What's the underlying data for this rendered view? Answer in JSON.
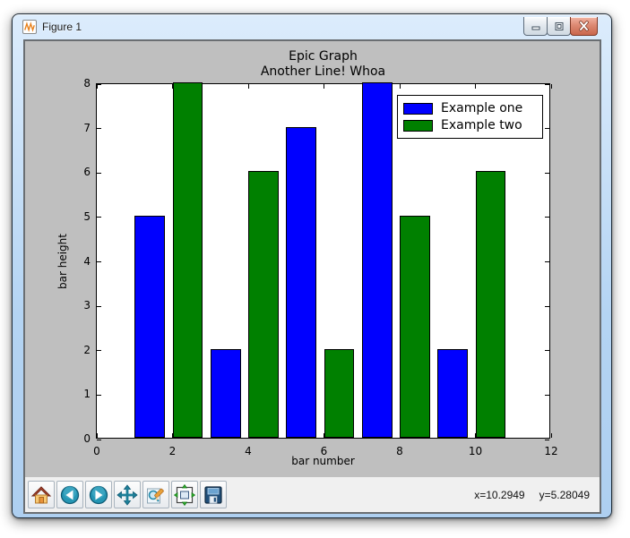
{
  "window": {
    "title": "Figure 1",
    "icon": "matplotlib-logo",
    "controls": [
      "minimize",
      "maximize",
      "close"
    ]
  },
  "chart_data": {
    "type": "bar",
    "title": "Epic Graph",
    "subtitle": "Another Line! Whoa",
    "xlabel": "bar number",
    "ylabel": "bar height",
    "xlim": [
      0,
      12
    ],
    "ylim": [
      0,
      8
    ],
    "xticks": [
      0,
      2,
      4,
      6,
      8,
      10,
      12
    ],
    "yticks": [
      0,
      1,
      2,
      3,
      4,
      5,
      6,
      7,
      8
    ],
    "bar_width": 0.8,
    "grid": false,
    "legend_position": "upper right",
    "series": [
      {
        "name": "Example one",
        "color": "#0000ff",
        "x": [
          1,
          3,
          5,
          7,
          9
        ],
        "values": [
          5,
          2,
          7,
          8,
          2
        ]
      },
      {
        "name": "Example two",
        "color": "#008000",
        "x": [
          2,
          4,
          6,
          8,
          10
        ],
        "values": [
          8,
          6,
          2,
          5,
          6
        ]
      }
    ]
  },
  "toolbar": {
    "buttons": [
      {
        "name": "home"
      },
      {
        "name": "back"
      },
      {
        "name": "forward"
      },
      {
        "name": "pan"
      },
      {
        "name": "zoom"
      },
      {
        "name": "subplots"
      },
      {
        "name": "save"
      }
    ],
    "status_x": "x=10.2949",
    "status_y": "y=5.28049"
  },
  "colors": {
    "figure_bg": "#bfbfbf",
    "plot_bg": "#ffffff",
    "bar_blue": "#0000ff",
    "bar_green": "#008000",
    "titlebar_blue": "#bcd9f7"
  }
}
